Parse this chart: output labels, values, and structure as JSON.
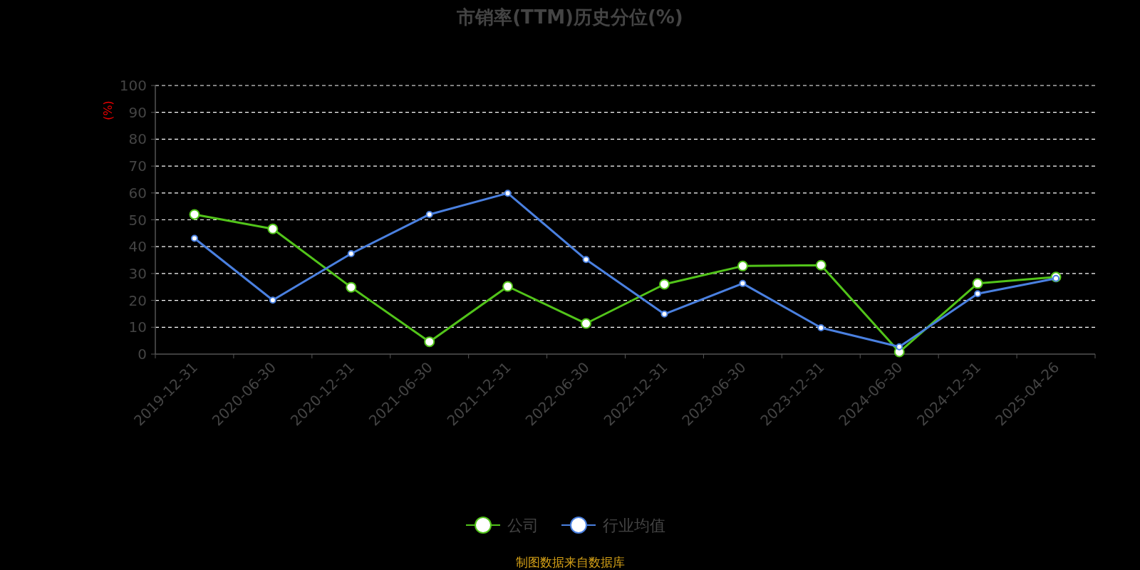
{
  "chart_data": {
    "type": "line",
    "title": "市销率(TTM)历史分位(%)",
    "ylabel": "(%)",
    "categories": [
      "2019-12-31",
      "2020-06-30",
      "2020-12-31",
      "2021-06-30",
      "2021-12-31",
      "2022-06-30",
      "2022-12-31",
      "2023-06-30",
      "2023-12-31",
      "2024-06-30",
      "2024-12-31",
      "2025-04-26"
    ],
    "series": [
      {
        "name": "公司",
        "color": "#52c41a",
        "values": [
          52.0,
          46.6,
          24.9,
          4.6,
          25.2,
          11.4,
          26.0,
          32.8,
          33.1,
          0.8,
          26.3,
          28.7
        ]
      },
      {
        "name": "行业均值",
        "color": "#4a80e0",
        "values": [
          43.1,
          20.1,
          37.4,
          52.0,
          59.9,
          35.2,
          14.9,
          26.3,
          9.8,
          2.7,
          22.5,
          28.2
        ]
      }
    ],
    "ylim": [
      0,
      100
    ],
    "yticks": [
      0,
      10,
      20,
      30,
      40,
      50,
      60,
      70,
      80,
      90,
      100
    ],
    "grid": "y",
    "legend": "bottom",
    "marker": "circle",
    "annotations": [
      "制图数据来自数据库"
    ]
  }
}
